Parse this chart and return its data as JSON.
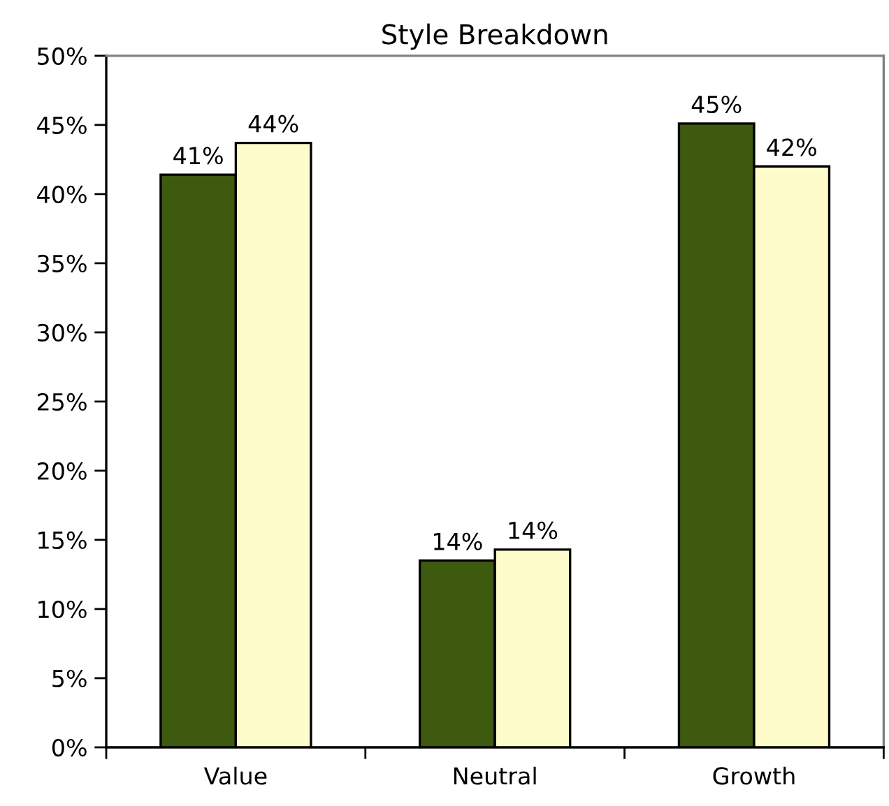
{
  "chart_data": {
    "type": "bar",
    "title": "Style Breakdown",
    "categories": [
      "Value",
      "Neutral",
      "Growth"
    ],
    "series": [
      {
        "color": "#3d5a0f",
        "values": [
          41.4,
          13.5,
          45.1
        ],
        "value_labels": [
          "41%",
          "14%",
          "45%"
        ]
      },
      {
        "color": "#fffccc",
        "values": [
          43.7,
          14.3,
          42.0
        ],
        "value_labels": [
          "44%",
          "14%",
          "42%"
        ]
      }
    ],
    "ylim": [
      0,
      50
    ],
    "yticks": [
      {
        "value": 0,
        "label": "0%"
      },
      {
        "value": 5,
        "label": "5%"
      },
      {
        "value": 10,
        "label": "10%"
      },
      {
        "value": 15,
        "label": "15%"
      },
      {
        "value": 20,
        "label": "20%"
      },
      {
        "value": 25,
        "label": "25%"
      },
      {
        "value": 30,
        "label": "30%"
      },
      {
        "value": 35,
        "label": "35%"
      },
      {
        "value": 40,
        "label": "40%"
      },
      {
        "value": 45,
        "label": "45%"
      },
      {
        "value": 50,
        "label": "50%"
      }
    ],
    "grid": false
  }
}
